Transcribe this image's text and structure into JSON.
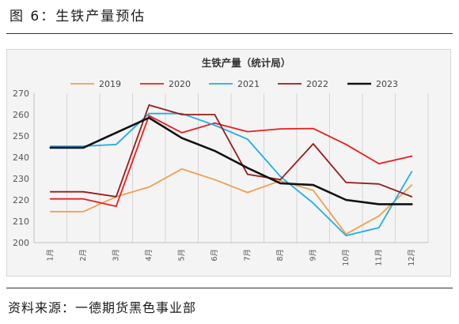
{
  "figure": {
    "label": "图 6：生铁产量预估",
    "source": "资料来源：一德期货黑色事业部"
  },
  "chart_data": {
    "type": "line",
    "title": "生铁产量（统计局）",
    "categories": [
      "1月",
      "2月",
      "3月",
      "4月",
      "5月",
      "6月",
      "7月",
      "8月",
      "9月",
      "10月",
      "11月",
      "12月"
    ],
    "ylim": [
      200,
      270
    ],
    "yticks": [
      200,
      210,
      220,
      230,
      240,
      250,
      260,
      270
    ],
    "grid": "vertical",
    "legend": "top",
    "series": [
      {
        "name": "2019",
        "color": "#F0A050",
        "width": 1.8,
        "values": [
          214.5,
          214.5,
          221.5,
          226,
          234.5,
          229.5,
          223.5,
          229,
          224.5,
          204,
          212.5,
          227
        ]
      },
      {
        "name": "2020",
        "color": "#EE1C1C",
        "width": 1.8,
        "values": [
          220.5,
          220.5,
          217,
          259.5,
          251.5,
          256,
          252,
          253.3,
          253.5,
          246,
          237,
          240.5
        ]
      },
      {
        "name": "2021",
        "color": "#1EAEEA",
        "width": 1.8,
        "values": [
          245.2,
          245.2,
          246,
          260.5,
          260.5,
          255,
          248.5,
          231,
          218.5,
          203.3,
          207,
          233.3
        ]
      },
      {
        "name": "2022",
        "color": "#9A1A1A",
        "width": 1.8,
        "values": [
          223.8,
          223.8,
          221.5,
          264.5,
          260,
          260,
          232,
          229.5,
          246.3,
          228.2,
          227.5,
          221.5
        ]
      },
      {
        "name": "2023",
        "color": "#111111",
        "width": 2.6,
        "values": [
          244.5,
          244.5,
          251.5,
          258.5,
          249,
          243,
          235,
          227.8,
          227,
          220,
          218,
          218
        ]
      }
    ]
  }
}
